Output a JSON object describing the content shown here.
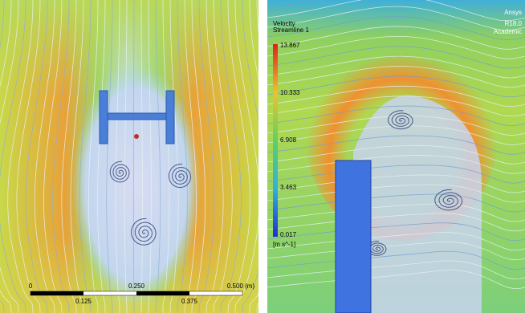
{
  "left_panel": {
    "scale_bar": {
      "top_labels": [
        "0",
        "0.250",
        "0.500 (m)"
      ],
      "bottom_labels": [
        "0.125",
        "0.375"
      ]
    }
  },
  "right_panel": {
    "watermark": [
      "Ansys",
      "R18.0",
      "Academic"
    ],
    "legend": {
      "title": [
        "Velocity",
        "Streamline 1"
      ],
      "labels": [
        "13.867",
        "10.333",
        "6.908",
        "3.463",
        "0.017"
      ],
      "unit": "[m s^-1]"
    }
  }
}
